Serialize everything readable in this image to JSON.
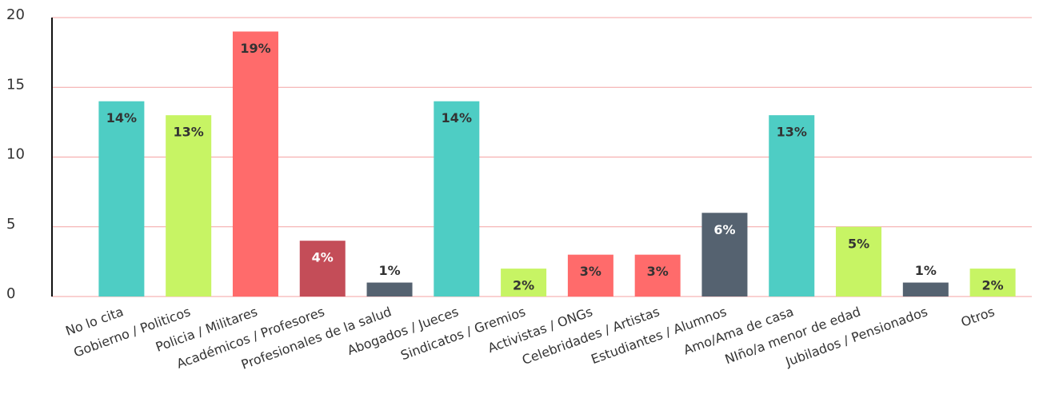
{
  "chart_data": {
    "type": "bar",
    "categories": [
      "No lo cita",
      "Gobierno / Politicos",
      "Policia / Militares",
      "Académicos / Profesores",
      "Profesionales de la salud",
      "Abogados / Jueces",
      "Sindicatos / Gremios",
      "Activistas / ONGs",
      "Celebridades / Artistas",
      "Estudiantes / Alumnos",
      "Amo/Ama de casa",
      "NIño/a menor de edad",
      "Jubilados / Pensionados",
      "Otros"
    ],
    "values": [
      14,
      13,
      19,
      4,
      1,
      14,
      2,
      3,
      3,
      6,
      13,
      5,
      1,
      2
    ],
    "value_labels": [
      "14%",
      "13%",
      "19%",
      "4%",
      "1%",
      "14%",
      "2%",
      "3%",
      "3%",
      "6%",
      "13%",
      "5%",
      "1%",
      "2%"
    ],
    "colors": [
      "#4ecdc4",
      "#c7f464",
      "#ff6b6b",
      "#c44d58",
      "#556270",
      "#4ecdc4",
      "#c7f464",
      "#ff6b6b",
      "#ff6b6b",
      "#556270",
      "#4ecdc4",
      "#c7f464",
      "#556270",
      "#c7f464"
    ],
    "ylim": [
      0,
      20
    ],
    "yticks": [
      0,
      5,
      10,
      15,
      20
    ],
    "grid": true
  }
}
